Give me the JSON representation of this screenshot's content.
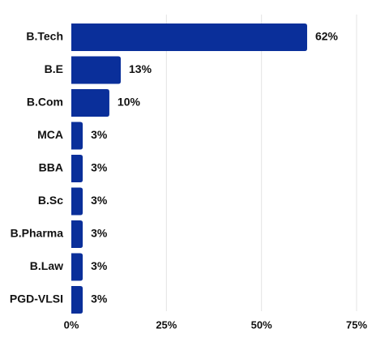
{
  "chart_data": {
    "type": "bar",
    "orientation": "horizontal",
    "categories": [
      "B.Tech",
      "B.E",
      "B.Com",
      "MCA",
      "BBA",
      "B.Sc",
      "B.Pharma",
      "B.Law",
      "PGD-VLSI"
    ],
    "values": [
      62,
      13,
      10,
      3,
      3,
      3,
      3,
      3,
      3
    ],
    "value_labels": [
      "62%",
      "13%",
      "10%",
      "3%",
      "3%",
      "3%",
      "3%",
      "3%",
      "3%"
    ],
    "xlim": [
      0,
      75
    ],
    "xticks": [
      0,
      25,
      50,
      75
    ],
    "xtick_labels": [
      "0%",
      "25%",
      "50%",
      "75%"
    ],
    "grid": true,
    "bar_color": "#0a2f9a",
    "title": "",
    "xlabel": "",
    "ylabel": ""
  }
}
